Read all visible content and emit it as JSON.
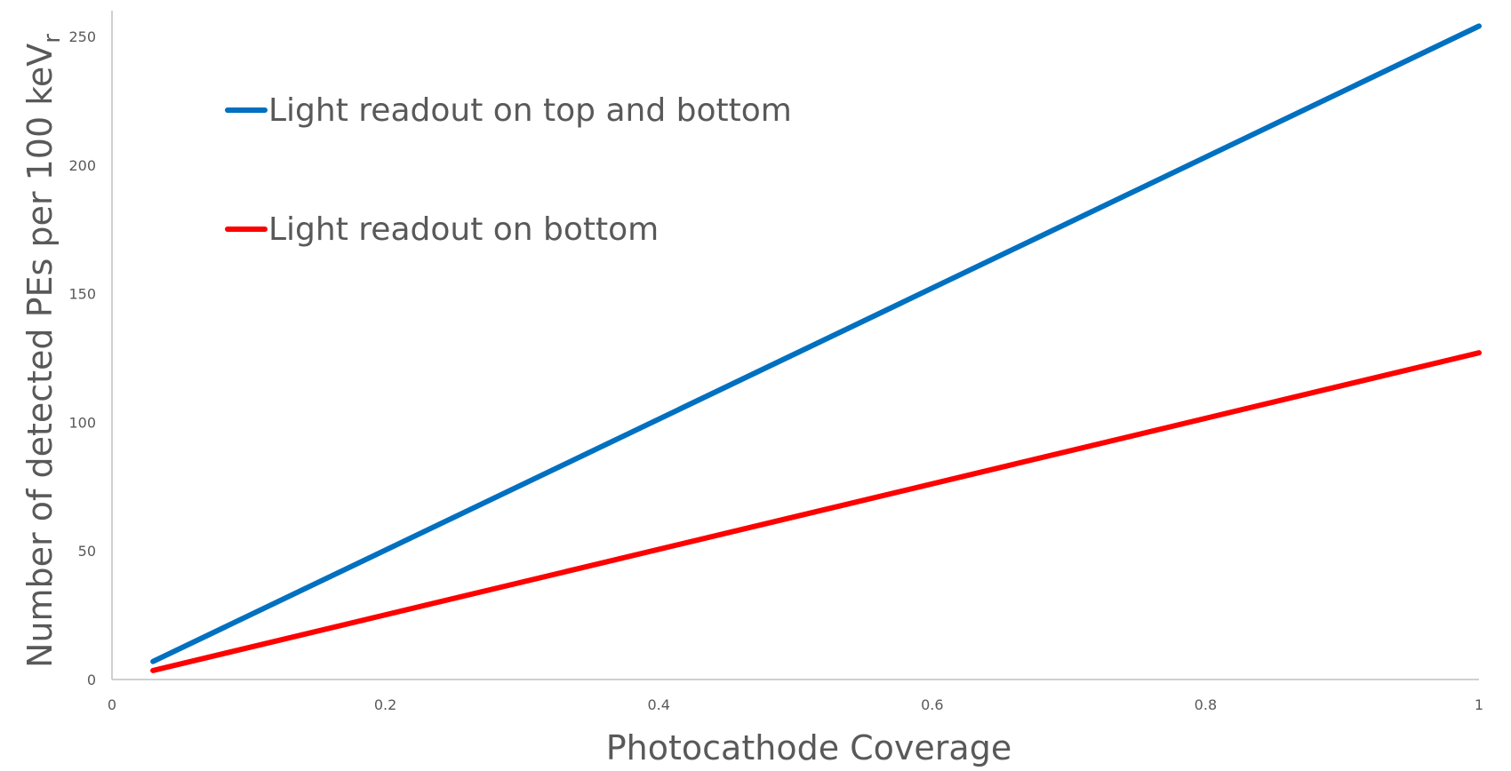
{
  "chart_data": {
    "type": "line",
    "title": "",
    "xlabel": "Photocathode Coverage",
    "ylabel": "Number of detected PEs per 100 keV",
    "ylabel_subscript": "r",
    "xlim": [
      0,
      1
    ],
    "ylim": [
      0,
      260
    ],
    "x_ticks": [
      0,
      0.2,
      0.4,
      0.6,
      0.8,
      1
    ],
    "y_ticks": [
      0,
      50,
      100,
      150,
      200,
      250
    ],
    "x_tick_labels": [
      "0",
      "0.2",
      "0.4",
      "0.6",
      "0.8",
      "1"
    ],
    "y_tick_labels": [
      "0",
      "50",
      "100",
      "150",
      "200",
      "250"
    ],
    "grid": false,
    "legend_position": "top-left",
    "series": [
      {
        "name": "Light readout on top and bottom",
        "color": "#0070c0",
        "x": [
          0.03,
          1
        ],
        "y": [
          7,
          254
        ]
      },
      {
        "name": "Light readout on bottom",
        "color": "#ff0000",
        "x": [
          0.03,
          1
        ],
        "y": [
          3.5,
          127
        ]
      }
    ]
  }
}
